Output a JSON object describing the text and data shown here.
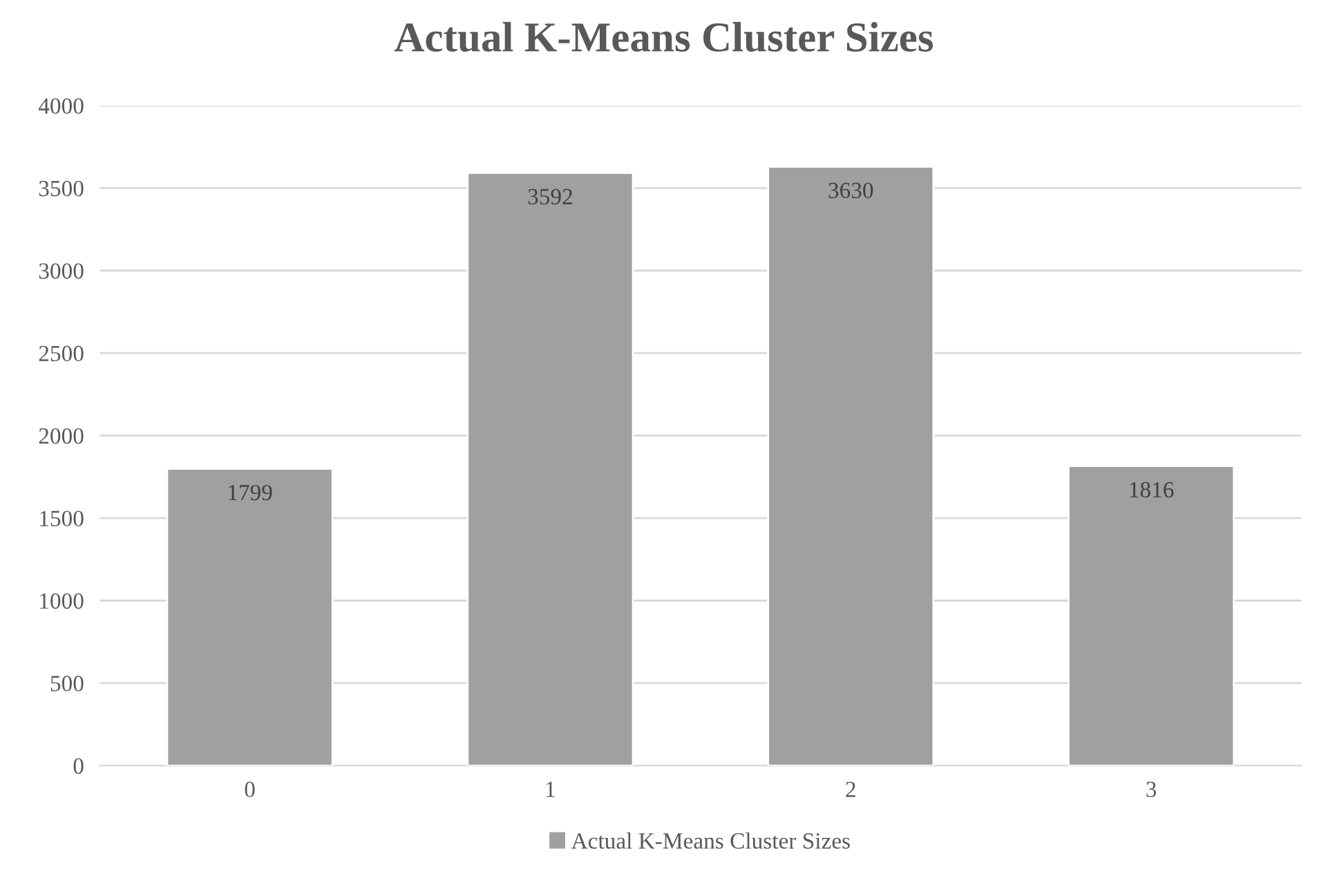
{
  "chart_data": {
    "type": "bar",
    "title": "Actual K-Means Cluster Sizes",
    "categories": [
      "0",
      "1",
      "2",
      "3"
    ],
    "series": [
      {
        "name": "Actual K-Means Cluster Sizes",
        "color": "#a0a0a0",
        "values": [
          1799,
          3592,
          3630,
          1816
        ]
      }
    ],
    "ylim": [
      0,
      4000
    ],
    "yticks": [
      0,
      500,
      1000,
      1500,
      2000,
      2500,
      3000,
      3500,
      4000
    ],
    "grid": "y",
    "legend": "bottom",
    "data_labels": true
  }
}
